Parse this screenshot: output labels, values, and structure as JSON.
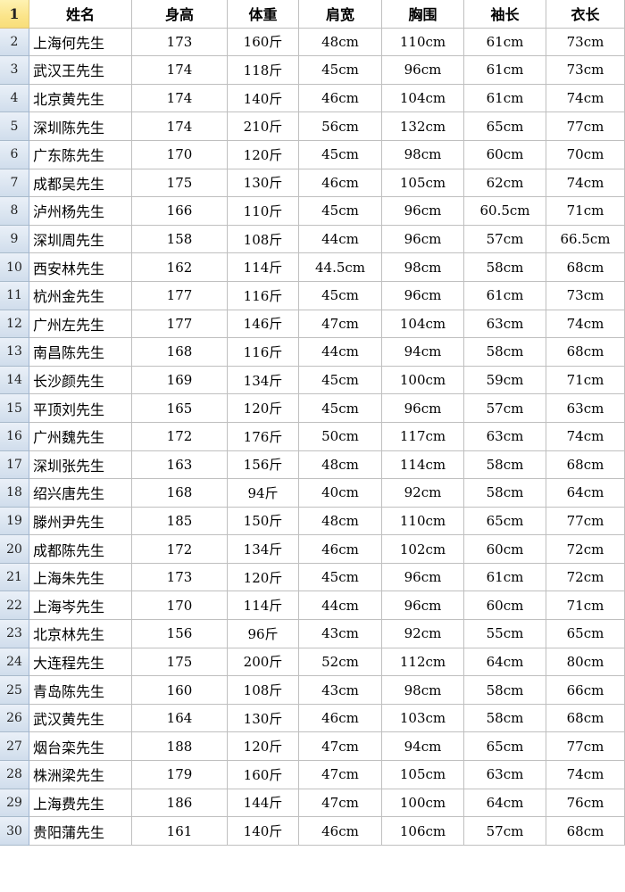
{
  "sheet": {
    "corner_row_number": "1",
    "columns": [
      {
        "key": "name",
        "label": "姓名"
      },
      {
        "key": "height",
        "label": "身高"
      },
      {
        "key": "weight",
        "label": "体重"
      },
      {
        "key": "shoulder",
        "label": "肩宽"
      },
      {
        "key": "chest",
        "label": "胸围"
      },
      {
        "key": "sleeve",
        "label": "袖长"
      },
      {
        "key": "length",
        "label": "衣长"
      }
    ],
    "rows": [
      {
        "row_number": "2",
        "name": "上海何先生",
        "height": "173",
        "weight": "160斤",
        "shoulder": "48cm",
        "chest": "110cm",
        "sleeve": "61cm",
        "length": "73cm"
      },
      {
        "row_number": "3",
        "name": "武汉王先生",
        "height": "174",
        "weight": "118斤",
        "shoulder": "45cm",
        "chest": "96cm",
        "sleeve": "61cm",
        "length": "73cm"
      },
      {
        "row_number": "4",
        "name": "北京黄先生",
        "height": "174",
        "weight": "140斤",
        "shoulder": "46cm",
        "chest": "104cm",
        "sleeve": "61cm",
        "length": "74cm"
      },
      {
        "row_number": "5",
        "name": "深圳陈先生",
        "height": "174",
        "weight": "210斤",
        "shoulder": "56cm",
        "chest": "132cm",
        "sleeve": "65cm",
        "length": "77cm"
      },
      {
        "row_number": "6",
        "name": "广东陈先生",
        "height": "170",
        "weight": "120斤",
        "shoulder": "45cm",
        "chest": "98cm",
        "sleeve": "60cm",
        "length": "70cm"
      },
      {
        "row_number": "7",
        "name": "成都吴先生",
        "height": "175",
        "weight": "130斤",
        "shoulder": "46cm",
        "chest": "105cm",
        "sleeve": "62cm",
        "length": "74cm"
      },
      {
        "row_number": "8",
        "name": "泸州杨先生",
        "height": "166",
        "weight": "110斤",
        "shoulder": "45cm",
        "chest": "96cm",
        "sleeve": "60.5cm",
        "length": "71cm"
      },
      {
        "row_number": "9",
        "name": "深圳周先生",
        "height": "158",
        "weight": "108斤",
        "shoulder": "44cm",
        "chest": "96cm",
        "sleeve": "57cm",
        "length": "66.5cm"
      },
      {
        "row_number": "10",
        "name": "西安林先生",
        "height": "162",
        "weight": "114斤",
        "shoulder": "44.5cm",
        "chest": "98cm",
        "sleeve": "58cm",
        "length": "68cm"
      },
      {
        "row_number": "11",
        "name": "杭州金先生",
        "height": "177",
        "weight": "116斤",
        "shoulder": "45cm",
        "chest": "96cm",
        "sleeve": "61cm",
        "length": "73cm"
      },
      {
        "row_number": "12",
        "name": "广州左先生",
        "height": "177",
        "weight": "146斤",
        "shoulder": "47cm",
        "chest": "104cm",
        "sleeve": "63cm",
        "length": "74cm"
      },
      {
        "row_number": "13",
        "name": "南昌陈先生",
        "height": "168",
        "weight": "116斤",
        "shoulder": "44cm",
        "chest": "94cm",
        "sleeve": "58cm",
        "length": "68cm"
      },
      {
        "row_number": "14",
        "name": "长沙颜先生",
        "height": "169",
        "weight": "134斤",
        "shoulder": "45cm",
        "chest": "100cm",
        "sleeve": "59cm",
        "length": "71cm"
      },
      {
        "row_number": "15",
        "name": "平顶刘先生",
        "height": "165",
        "weight": "120斤",
        "shoulder": "45cm",
        "chest": "96cm",
        "sleeve": "57cm",
        "length": "63cm"
      },
      {
        "row_number": "16",
        "name": "广州魏先生",
        "height": "172",
        "weight": "176斤",
        "shoulder": "50cm",
        "chest": "117cm",
        "sleeve": "63cm",
        "length": "74cm"
      },
      {
        "row_number": "17",
        "name": "深圳张先生",
        "height": "163",
        "weight": "156斤",
        "shoulder": "48cm",
        "chest": "114cm",
        "sleeve": "58cm",
        "length": "68cm"
      },
      {
        "row_number": "18",
        "name": "绍兴唐先生",
        "height": "168",
        "weight": "94斤",
        "shoulder": "40cm",
        "chest": "92cm",
        "sleeve": "58cm",
        "length": "64cm"
      },
      {
        "row_number": "19",
        "name": "滕州尹先生",
        "height": "185",
        "weight": "150斤",
        "shoulder": "48cm",
        "chest": "110cm",
        "sleeve": "65cm",
        "length": "77cm"
      },
      {
        "row_number": "20",
        "name": "成都陈先生",
        "height": "172",
        "weight": "134斤",
        "shoulder": "46cm",
        "chest": "102cm",
        "sleeve": "60cm",
        "length": "72cm"
      },
      {
        "row_number": "21",
        "name": "上海朱先生",
        "height": "173",
        "weight": "120斤",
        "shoulder": "45cm",
        "chest": "96cm",
        "sleeve": "61cm",
        "length": "72cm"
      },
      {
        "row_number": "22",
        "name": "上海岑先生",
        "height": "170",
        "weight": "114斤",
        "shoulder": "44cm",
        "chest": "96cm",
        "sleeve": "60cm",
        "length": "71cm"
      },
      {
        "row_number": "23",
        "name": "北京林先生",
        "height": "156",
        "weight": "96斤",
        "shoulder": "43cm",
        "chest": "92cm",
        "sleeve": "55cm",
        "length": "65cm"
      },
      {
        "row_number": "24",
        "name": "大连程先生",
        "height": "175",
        "weight": "200斤",
        "shoulder": "52cm",
        "chest": "112cm",
        "sleeve": "64cm",
        "length": "80cm"
      },
      {
        "row_number": "25",
        "name": "青岛陈先生",
        "height": "160",
        "weight": "108斤",
        "shoulder": "43cm",
        "chest": "98cm",
        "sleeve": "58cm",
        "length": "66cm"
      },
      {
        "row_number": "26",
        "name": "武汉黄先生",
        "height": "164",
        "weight": "130斤",
        "shoulder": "46cm",
        "chest": "103cm",
        "sleeve": "58cm",
        "length": "68cm"
      },
      {
        "row_number": "27",
        "name": "烟台栾先生",
        "height": "188",
        "weight": "120斤",
        "shoulder": "47cm",
        "chest": "94cm",
        "sleeve": "65cm",
        "length": "77cm"
      },
      {
        "row_number": "28",
        "name": "株洲梁先生",
        "height": "179",
        "weight": "160斤",
        "shoulder": "47cm",
        "chest": "105cm",
        "sleeve": "63cm",
        "length": "74cm"
      },
      {
        "row_number": "29",
        "name": "上海费先生",
        "height": "186",
        "weight": "144斤",
        "shoulder": "47cm",
        "chest": "100cm",
        "sleeve": "64cm",
        "length": "76cm"
      },
      {
        "row_number": "30",
        "name": "贵阳蒲先生",
        "height": "161",
        "weight": "140斤",
        "shoulder": "46cm",
        "chest": "106cm",
        "sleeve": "57cm",
        "length": "68cm"
      }
    ]
  },
  "colors": {
    "gridline": "#BFBFBF",
    "rowhead_bg": "#DCE6F1",
    "rowhead_bg_top": "#EAF0F8",
    "rowhead_border": "#9EB4D2",
    "corner_bg": "#FBE489"
  }
}
